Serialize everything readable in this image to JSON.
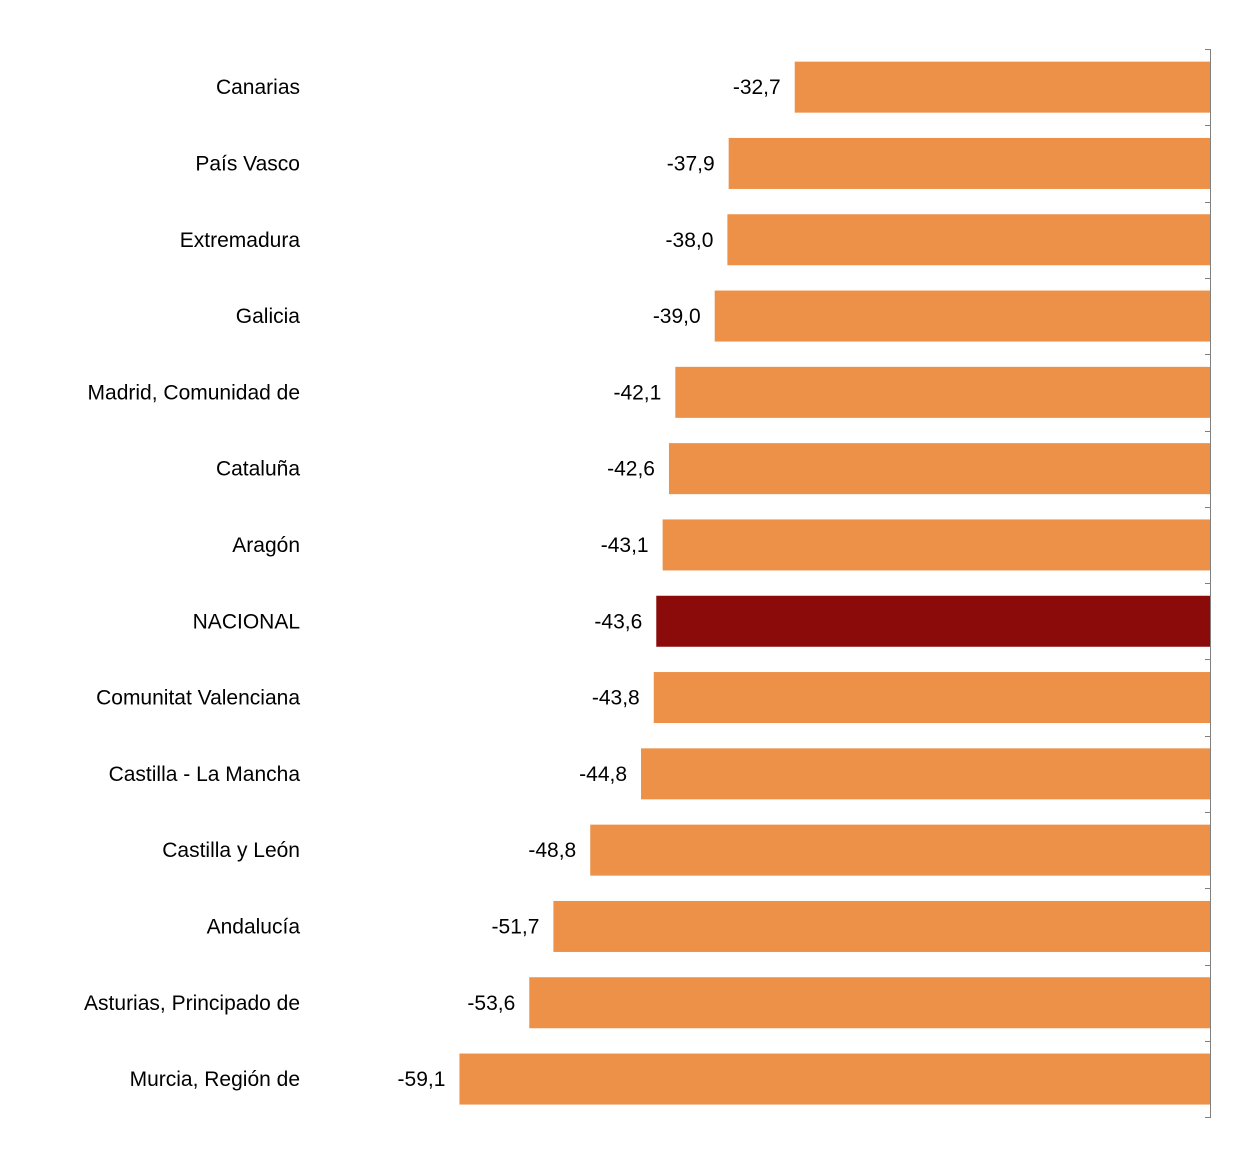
{
  "chart_data": {
    "type": "bar",
    "orientation": "horizontal",
    "title": "",
    "xlabel": "",
    "ylabel": "",
    "categories": [
      "Canarias",
      "País Vasco",
      "Extremadura",
      "Galicia",
      "Madrid, Comunidad de",
      "Cataluña",
      "Aragón",
      "NACIONAL",
      "Comunitat Valenciana",
      "Castilla - La Mancha",
      "Castilla y León",
      "Andalucía",
      "Asturias, Principado de",
      "Murcia, Región de"
    ],
    "values": [
      -32.7,
      -37.9,
      -38.0,
      -39.0,
      -42.1,
      -42.6,
      -43.1,
      -43.6,
      -43.8,
      -44.8,
      -48.8,
      -51.7,
      -53.6,
      -59.1
    ],
    "value_labels": [
      "-32,7",
      "-37,9",
      "-38,0",
      "-39,0",
      "-42,1",
      "-42,6",
      "-43,1",
      "-43,6",
      "-43,8",
      "-44,8",
      "-48,8",
      "-51,7",
      "-53,6",
      "-59,1"
    ],
    "highlight_category": "NACIONAL",
    "xlim": [
      -59.1,
      0
    ],
    "grid": false,
    "legend": "none",
    "colors": {
      "bar": "#ec9147",
      "highlight": "#8b0a0a",
      "axis": "#808080",
      "text": "#000000"
    }
  }
}
